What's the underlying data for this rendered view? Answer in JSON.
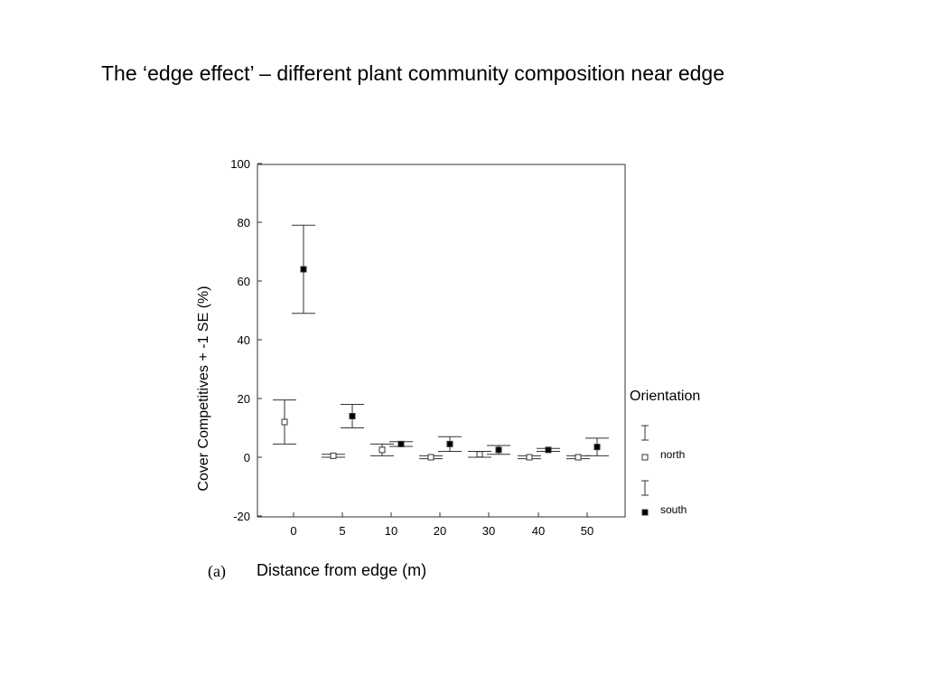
{
  "slide": {
    "title": "The ‘edge effect’ – different plant community composition near edge",
    "panel_label": "(a)"
  },
  "chart_data": {
    "type": "scatter",
    "title": "",
    "xlabel": "Distance from edge (m)",
    "ylabel": "Cover Competitives + -1 SE   (%)",
    "ylim": [
      -20,
      100
    ],
    "yticks": [
      -20,
      0,
      20,
      40,
      60,
      80,
      100
    ],
    "categories": [
      "0",
      "5",
      "10",
      "20",
      "30",
      "40",
      "50"
    ],
    "legend": {
      "title": "Orientation",
      "placement": "right"
    },
    "series": [
      {
        "name": "north",
        "marker": "open-square",
        "values": [
          12,
          0.5,
          2.5,
          0,
          1,
          0,
          0
        ],
        "se": [
          7.5,
          0.5,
          2,
          0.5,
          1,
          0.5,
          0.5
        ]
      },
      {
        "name": "south",
        "marker": "filled-square",
        "values": [
          64,
          14,
          4.5,
          4.5,
          2.5,
          2.5,
          3.5
        ],
        "se": [
          15,
          4,
          0.8,
          2.5,
          1.5,
          0.5,
          3
        ]
      }
    ]
  }
}
